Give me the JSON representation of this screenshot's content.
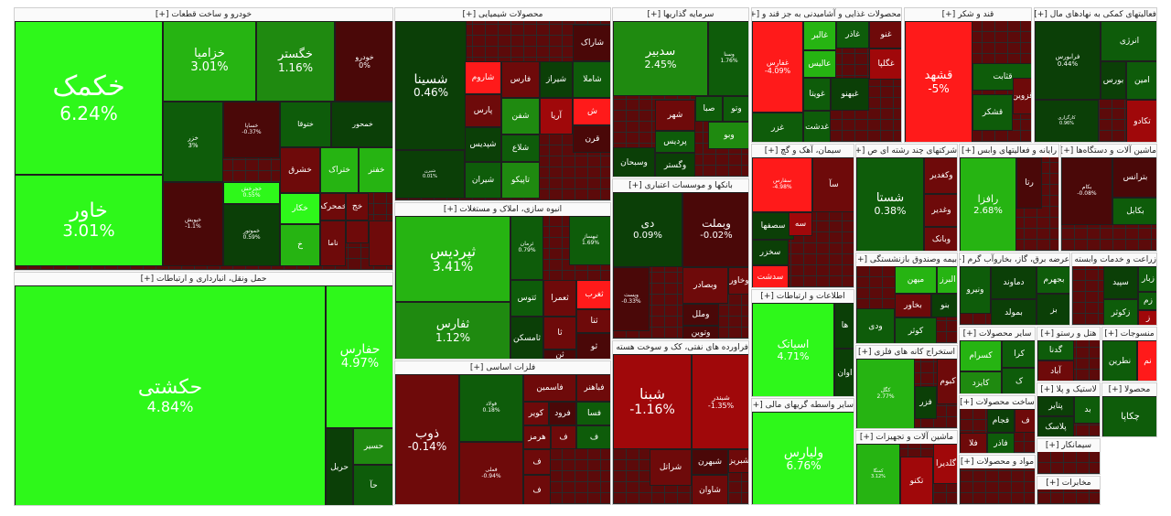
{
  "colors": {
    "bright_green": "#2ef81a",
    "green": "#26b412",
    "mid_green": "#1f8a10",
    "dark_green": "#0e5c0a",
    "deep_green": "#0b3f07",
    "bright_red": "#ff1a1a",
    "red": "#a0080a",
    "dark_red": "#6e0a0a",
    "deep_red": "#4a0808"
  },
  "sectors": {
    "auto": {
      "title": "خودرو و ساخت قطعات [+]",
      "tiles": [
        {
          "name": "خکمک",
          "pct": "6.24%"
        },
        {
          "name": "خاور",
          "pct": "3.01%"
        },
        {
          "name": "خزامیا",
          "pct": "3.01%"
        },
        {
          "name": "خگستر",
          "pct": "1.16%"
        },
        {
          "name": "خودرو",
          "pct": "0%"
        },
        {
          "name": "خزر",
          "pct": "3%"
        },
        {
          "name": "خساپا",
          "pct": "-0.37%"
        },
        {
          "name": "خپویش",
          "pct": "-1.1%"
        },
        {
          "name": "خچرخش",
          "pct": "0.55%"
        },
        {
          "name": "خموتور",
          "pct": "0.59%"
        },
        {
          "name": "ختوقا",
          "pct": ""
        },
        {
          "name": "خمحور",
          "pct": ""
        },
        {
          "name": "خشرق",
          "pct": ""
        },
        {
          "name": "ختراک",
          "pct": ""
        },
        {
          "name": "خفنر",
          "pct": ""
        },
        {
          "name": "خکار",
          "pct": ""
        },
        {
          "name": "خمحرکه",
          "pct": ""
        },
        {
          "name": "خج",
          "pct": ""
        },
        {
          "name": "خ",
          "pct": ""
        },
        {
          "name": "ناما",
          "pct": ""
        }
      ]
    },
    "transport": {
      "title": "حمل ونقل، انبارداری و ارتباطات [+]",
      "tiles": [
        {
          "name": "حکشتی",
          "pct": "4.84%"
        },
        {
          "name": "حفارس",
          "pct": "4.97%"
        },
        {
          "name": "حریل",
          "pct": ""
        },
        {
          "name": "حسیر",
          "pct": ""
        },
        {
          "name": "حآ",
          "pct": ""
        }
      ]
    },
    "chem": {
      "title": "محصولات شیمیایی [+]",
      "tiles": [
        {
          "name": "شسینا",
          "pct": "0.46%"
        },
        {
          "name": "شاراک",
          "pct": ""
        },
        {
          "name": "شاملا",
          "pct": ""
        },
        {
          "name": "شیراز",
          "pct": ""
        },
        {
          "name": "فارس",
          "pct": ""
        },
        {
          "name": "شاروم",
          "pct": ""
        },
        {
          "name": "پارس",
          "pct": ""
        },
        {
          "name": "آریا",
          "pct": ""
        },
        {
          "name": "شفن",
          "pct": ""
        },
        {
          "name": "ش",
          "pct": ""
        },
        {
          "name": "قرن",
          "pct": ""
        },
        {
          "name": "شپدیس",
          "pct": ""
        },
        {
          "name": "شلاع",
          "pct": ""
        },
        {
          "name": "شیران",
          "pct": ""
        },
        {
          "name": "تاپیکو",
          "pct": ""
        },
        {
          "name": "شپرن",
          "pct": "0.01%"
        }
      ]
    },
    "building": {
      "title": "انبوه سازی، املاک و مستغلات [+]",
      "tiles": [
        {
          "name": "ثپردیس",
          "pct": "3.41%"
        },
        {
          "name": "ثفارس",
          "pct": "1.12%"
        },
        {
          "name": "ثرمان",
          "pct": "0.79%"
        },
        {
          "name": "ثبهساز",
          "pct": "1.69%"
        },
        {
          "name": "ثعمرا",
          "pct": ""
        },
        {
          "name": "ثتوس",
          "pct": ""
        },
        {
          "name": "ثغرب",
          "pct": ""
        },
        {
          "name": "ثامسکن",
          "pct": ""
        },
        {
          "name": "ثا",
          "pct": ""
        },
        {
          "name": "ثنا",
          "pct": ""
        },
        {
          "name": "ثو",
          "pct": ""
        },
        {
          "name": "ثن",
          "pct": ""
        }
      ]
    },
    "metals": {
      "title": "فلزات اساسی [+]",
      "tiles": [
        {
          "name": "ذوب",
          "pct": "-0.14%"
        },
        {
          "name": "فولاد",
          "pct": "0.18%"
        },
        {
          "name": "فملی",
          "pct": "-0.94%"
        },
        {
          "name": "فاسمین",
          "pct": ""
        },
        {
          "name": "فباهنر",
          "pct": ""
        },
        {
          "name": "کویر",
          "pct": ""
        },
        {
          "name": "فرود",
          "pct": ""
        },
        {
          "name": "فسا",
          "pct": ""
        },
        {
          "name": "هرمز",
          "pct": ""
        },
        {
          "name": "ف",
          "pct": ""
        },
        {
          "name": "ف",
          "pct": ""
        },
        {
          "name": "ف",
          "pct": ""
        },
        {
          "name": "ف",
          "pct": ""
        }
      ]
    },
    "invest": {
      "title": "سرمایه گذاریها [+]",
      "tiles": [
        {
          "name": "سدبیر",
          "pct": "2.45%"
        },
        {
          "name": "وسنا",
          "pct": "1.76%"
        },
        {
          "name": "صبا",
          "pct": ""
        },
        {
          "name": "وتو",
          "pct": ""
        },
        {
          "name": "شهر",
          "pct": ""
        },
        {
          "name": "وسبحان",
          "pct": ""
        },
        {
          "name": "وگستر",
          "pct": ""
        },
        {
          "name": "پردیس",
          "pct": ""
        },
        {
          "name": "وبو",
          "pct": ""
        }
      ]
    },
    "banks": {
      "title": "بانکها و موسسات اعتباری [+]",
      "tiles": [
        {
          "name": "دی",
          "pct": "0.09%"
        },
        {
          "name": "وبملت",
          "pct": "-0.02%"
        },
        {
          "name": "وبصادر",
          "pct": ""
        },
        {
          "name": "وخاور",
          "pct": ""
        },
        {
          "name": "وملل",
          "pct": ""
        },
        {
          "name": "وتوین",
          "pct": ""
        },
        {
          "name": "وپست",
          "pct": "-0.33%"
        }
      ]
    },
    "oil": {
      "title": "فراورده های نفتی، کک و سوخت هسته [+]",
      "tiles": [
        {
          "name": "شبنا",
          "pct": "-1.16%"
        },
        {
          "name": "شبندر",
          "pct": "-1.35%"
        },
        {
          "name": "شبهرن",
          "pct": ""
        },
        {
          "name": "شراتل",
          "pct": ""
        },
        {
          "name": "شاوان",
          "pct": ""
        },
        {
          "name": "شبریز",
          "pct": ""
        }
      ]
    },
    "food": {
      "title": "محصولات غذایی و آشامیدنی به جز قند و [+]",
      "tiles": [
        {
          "name": "غفارس",
          "pct": "-4.09%"
        },
        {
          "name": "غالبر",
          "pct": ""
        },
        {
          "name": "عالیس",
          "pct": ""
        },
        {
          "name": "غاذر",
          "pct": ""
        },
        {
          "name": "غنو",
          "pct": ""
        },
        {
          "name": "غویتا",
          "pct": ""
        },
        {
          "name": "غگلپا",
          "pct": ""
        },
        {
          "name": "غزر",
          "pct": ""
        },
        {
          "name": "غدشت",
          "pct": ""
        },
        {
          "name": "غبهنو",
          "pct": ""
        }
      ]
    },
    "sugar": {
      "title": "قند و شکر [+]",
      "tiles": [
        {
          "name": "قشهد",
          "pct": "-5%"
        },
        {
          "name": "قثابت",
          "pct": ""
        },
        {
          "name": "قشکر",
          "pct": ""
        },
        {
          "name": "قزوین",
          "pct": ""
        }
      ]
    },
    "finance": {
      "title": "فعالیتهای کمکی به نهادهای مال [+]",
      "tiles": [
        {
          "name": "فرابورس",
          "pct": "0.44%"
        },
        {
          "name": "انرژی",
          "pct": ""
        },
        {
          "name": "امین",
          "pct": ""
        },
        {
          "name": "بورس",
          "pct": ""
        },
        {
          "name": "تکادو",
          "pct": ""
        },
        {
          "name": "کارگزاری",
          "pct": "0.96%"
        }
      ]
    },
    "cement": {
      "title": "سیمان، آهک و گچ [+]",
      "tiles": [
        {
          "name": "سفارس",
          "pct": "-4.98%"
        },
        {
          "name": "سآ",
          "pct": ""
        },
        {
          "name": "سصفها",
          "pct": ""
        },
        {
          "name": "سخزر",
          "pct": ""
        },
        {
          "name": "سدشت",
          "pct": ""
        },
        {
          "name": "سه",
          "pct": ""
        }
      ]
    },
    "multi": {
      "title": "شرکتهای چند رشته ای ص [+]",
      "tiles": [
        {
          "name": "شستا",
          "pct": "0.38%"
        },
        {
          "name": "وکغدیر",
          "pct": ""
        },
        {
          "name": "وغدیر",
          "pct": ""
        },
        {
          "name": "وبانک",
          "pct": ""
        }
      ]
    },
    "it": {
      "title": "رایانه و فعالیتهای وابس [+]",
      "tiles": [
        {
          "name": "رافزا",
          "pct": "2.68%"
        },
        {
          "name": "رتا",
          "pct": ""
        }
      ]
    },
    "machinery": {
      "title": "ماشین آلات و دستگاه‌ها [+]",
      "tiles": [
        {
          "name": "بترانس",
          "pct": ""
        },
        {
          "name": "بکابل",
          "pct": ""
        },
        {
          "name": "بکام",
          "pct": "-0.08%"
        }
      ]
    },
    "telecom": {
      "title": "اطلاعات و ارتباطات [+]",
      "tiles": [
        {
          "name": "اسیاتک",
          "pct": "4.71%"
        },
        {
          "name": "ها",
          "pct": ""
        },
        {
          "name": "اوان",
          "pct": ""
        }
      ]
    },
    "fininter": {
      "title": "سایر واسطه گریهای مالی [+]",
      "tiles": [
        {
          "name": "ولیارس",
          "pct": "6.76%"
        }
      ]
    },
    "insurance": {
      "title": "بیمه وصندوق بازنشستگی [+]",
      "tiles": [
        {
          "name": "البرز",
          "pct": ""
        },
        {
          "name": "میهن",
          "pct": ""
        },
        {
          "name": "بخاور",
          "pct": ""
        },
        {
          "name": "بنو",
          "pct": ""
        },
        {
          "name": "کوثر",
          "pct": ""
        },
        {
          "name": "ودی",
          "pct": ""
        }
      ]
    },
    "utilities": {
      "title": "عرضه برق، گاز، بخاروآب گرم [+]",
      "tiles": [
        {
          "name": "دماوند",
          "pct": ""
        },
        {
          "name": "ونیرو",
          "pct": ""
        },
        {
          "name": "بجهرم",
          "pct": ""
        },
        {
          "name": "بمولد",
          "pct": ""
        },
        {
          "name": "بز",
          "pct": ""
        }
      ]
    },
    "agri": {
      "title": "زراعت و خدمات وابسته [+]",
      "tiles": [
        {
          "name": "سپید",
          "pct": ""
        },
        {
          "name": "زکوثر",
          "pct": ""
        },
        {
          "name": "زبار",
          "pct": ""
        },
        {
          "name": "زم",
          "pct": ""
        },
        {
          "name": "ز",
          "pct": ""
        }
      ]
    },
    "mining": {
      "title": "استخراج کانه های فلزی [+]",
      "tiles": [
        {
          "name": "کگل",
          "pct": "2.77%"
        },
        {
          "name": "فزر",
          "pct": ""
        },
        {
          "name": "کبوم",
          "pct": ""
        }
      ]
    },
    "electric": {
      "title": "ماشین آلات و تجهیزات [+]",
      "tiles": [
        {
          "name": "تکنو",
          "pct": ""
        },
        {
          "name": "گلدیرا",
          "pct": ""
        },
        {
          "name": "کمنگا",
          "pct": "3.12%"
        }
      ]
    },
    "otherprod": {
      "title": "سایر محصولات [+]",
      "tiles": [
        {
          "name": "کسرام",
          "pct": ""
        },
        {
          "name": "کایزد",
          "pct": ""
        },
        {
          "name": "کرا",
          "pct": ""
        },
        {
          "name": "ک",
          "pct": ""
        }
      ]
    },
    "hotel": {
      "title": "هتل و رستو [+]",
      "tiles": [
        {
          "name": "گدنا",
          "pct": ""
        },
        {
          "name": "آباد",
          "pct": ""
        }
      ]
    },
    "textile": {
      "title": "منسوجات [+]",
      "tiles": [
        {
          "name": "نطرین",
          "pct": ""
        },
        {
          "name": "نم",
          "pct": ""
        }
      ]
    },
    "plastic": {
      "title": "لاستیک و پلا [+]",
      "tiles": [
        {
          "name": "پتایر",
          "pct": ""
        },
        {
          "name": "پلاسک",
          "pct": ""
        },
        {
          "name": "بد",
          "pct": ""
        }
      ]
    },
    "metalprod": {
      "title": "ساخت محصولات [+]",
      "tiles": [
        {
          "name": "فجام",
          "pct": ""
        },
        {
          "name": "فاذر",
          "pct": ""
        },
        {
          "name": "فلا",
          "pct": ""
        },
        {
          "name": "ف",
          "pct": ""
        }
      ]
    },
    "paper": {
      "title": "محصولا [+]",
      "tiles": [
        {
          "name": "چکاپا",
          "pct": ""
        }
      ]
    },
    "pharma": {
      "title": "مواد و محصولات [+]",
      "tiles": []
    },
    "sement2": {
      "title": "سیمانکار [+]",
      "tiles": []
    },
    "telecom2": {
      "title": "مخابرات [+]",
      "tiles": []
    }
  }
}
